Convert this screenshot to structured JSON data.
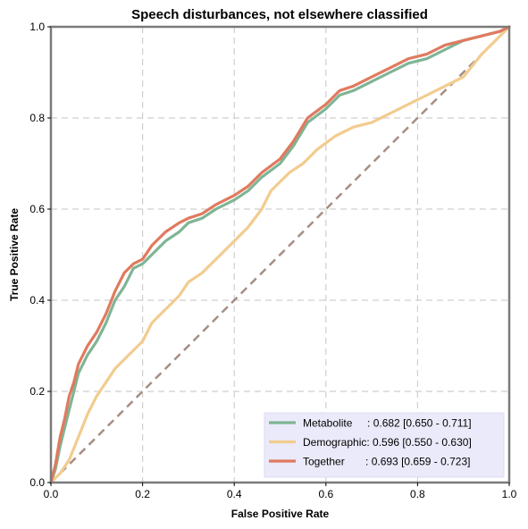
{
  "chart_data": {
    "type": "line",
    "title": "Speech disturbances, not elsewhere classified",
    "xlabel": "False Positive Rate",
    "ylabel": "True Positive Rate",
    "xlim": [
      0,
      1
    ],
    "ylim": [
      0,
      1
    ],
    "xticks": [
      "0.0",
      "0.2",
      "0.4",
      "0.6",
      "0.8",
      "1.0"
    ],
    "yticks": [
      "0.0",
      "0.2",
      "0.4",
      "0.6",
      "0.8",
      "1.0"
    ],
    "grid": true,
    "legend_position": "lower-right",
    "diagonal": {
      "color": "#a58e83",
      "style": "dashed"
    },
    "series": [
      {
        "name": "Metabolite",
        "legend_label": "Metabolite     : 0.682 [0.650 - 0.711]",
        "color": "#7fb595",
        "x": [
          0,
          0.01,
          0.02,
          0.03,
          0.04,
          0.05,
          0.06,
          0.07,
          0.08,
          0.1,
          0.12,
          0.14,
          0.16,
          0.18,
          0.2,
          0.22,
          0.25,
          0.28,
          0.3,
          0.33,
          0.36,
          0.4,
          0.43,
          0.46,
          0.5,
          0.53,
          0.56,
          0.6,
          0.63,
          0.66,
          0.7,
          0.74,
          0.78,
          0.82,
          0.86,
          0.9,
          0.94,
          0.98,
          1.0
        ],
        "y": [
          0,
          0.03,
          0.08,
          0.12,
          0.16,
          0.2,
          0.24,
          0.26,
          0.28,
          0.31,
          0.35,
          0.4,
          0.43,
          0.47,
          0.48,
          0.5,
          0.53,
          0.55,
          0.57,
          0.58,
          0.6,
          0.62,
          0.64,
          0.67,
          0.7,
          0.74,
          0.79,
          0.82,
          0.85,
          0.86,
          0.88,
          0.9,
          0.92,
          0.93,
          0.95,
          0.97,
          0.98,
          0.99,
          1.0
        ]
      },
      {
        "name": "Demographic",
        "legend_label": "Demographic: 0.596 [0.550 - 0.630]",
        "color": "#f2cc8f",
        "x": [
          0,
          0.02,
          0.04,
          0.06,
          0.08,
          0.1,
          0.12,
          0.14,
          0.16,
          0.18,
          0.2,
          0.22,
          0.24,
          0.26,
          0.28,
          0.3,
          0.33,
          0.36,
          0.4,
          0.43,
          0.46,
          0.48,
          0.5,
          0.52,
          0.55,
          0.58,
          0.62,
          0.66,
          0.7,
          0.74,
          0.78,
          0.82,
          0.86,
          0.9,
          0.94,
          0.98,
          1.0
        ],
        "y": [
          0,
          0.02,
          0.05,
          0.1,
          0.15,
          0.19,
          0.22,
          0.25,
          0.27,
          0.29,
          0.31,
          0.35,
          0.37,
          0.39,
          0.41,
          0.44,
          0.46,
          0.49,
          0.53,
          0.56,
          0.6,
          0.64,
          0.66,
          0.68,
          0.7,
          0.73,
          0.76,
          0.78,
          0.79,
          0.81,
          0.83,
          0.85,
          0.87,
          0.89,
          0.94,
          0.98,
          1.0
        ]
      },
      {
        "name": "Together",
        "legend_label": "Together       : 0.693 [0.659 - 0.723]",
        "color": "#e07a5f",
        "x": [
          0,
          0.01,
          0.02,
          0.03,
          0.04,
          0.05,
          0.06,
          0.07,
          0.08,
          0.1,
          0.12,
          0.14,
          0.16,
          0.18,
          0.2,
          0.22,
          0.25,
          0.28,
          0.3,
          0.33,
          0.36,
          0.4,
          0.43,
          0.46,
          0.5,
          0.53,
          0.56,
          0.6,
          0.63,
          0.66,
          0.7,
          0.74,
          0.78,
          0.82,
          0.86,
          0.9,
          0.94,
          0.98,
          1.0
        ],
        "y": [
          0,
          0.04,
          0.1,
          0.14,
          0.19,
          0.22,
          0.26,
          0.28,
          0.3,
          0.33,
          0.37,
          0.42,
          0.46,
          0.48,
          0.49,
          0.52,
          0.55,
          0.57,
          0.58,
          0.59,
          0.61,
          0.63,
          0.65,
          0.68,
          0.71,
          0.75,
          0.8,
          0.83,
          0.86,
          0.87,
          0.89,
          0.91,
          0.93,
          0.94,
          0.96,
          0.97,
          0.98,
          0.99,
          1.0
        ]
      }
    ]
  }
}
